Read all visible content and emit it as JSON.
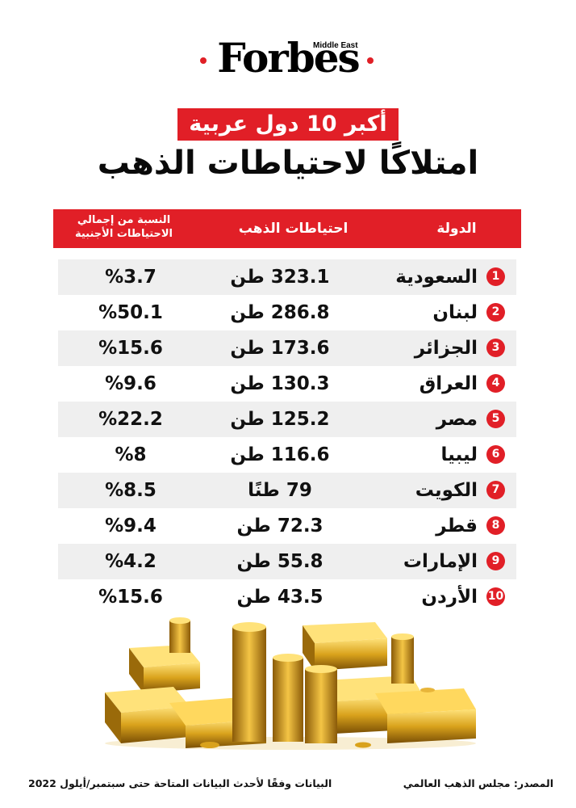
{
  "brand": {
    "name": "Forbes",
    "edition": "Middle East"
  },
  "title": {
    "line1": "أكبر 10 دول عربية",
    "line2": "امتلاكًا لاحتياطات الذهب"
  },
  "colors": {
    "accent": "#e11f27",
    "row_shade": "#efefef",
    "text": "#111111"
  },
  "chart_data": {
    "type": "table",
    "columns": {
      "country": "الدولة",
      "reserves": "احتياطات الذهب",
      "share_line1": "النسبة من إجمالي",
      "share_line2": "الاحتياطات الأجنبية"
    },
    "rows": [
      {
        "rank": "1",
        "country": "السعودية",
        "reserves": "323.1 طن",
        "share": "%3.7",
        "shaded": true
      },
      {
        "rank": "2",
        "country": "لبنان",
        "reserves": "286.8 طن",
        "share": "%50.1",
        "shaded": false
      },
      {
        "rank": "3",
        "country": "الجزائر",
        "reserves": "173.6 طن",
        "share": "%15.6",
        "shaded": true
      },
      {
        "rank": "4",
        "country": "العراق",
        "reserves": "130.3 طن",
        "share": "%9.6",
        "shaded": false
      },
      {
        "rank": "5",
        "country": "مصر",
        "reserves": "125.2 طن",
        "share": "%22.2",
        "shaded": true
      },
      {
        "rank": "6",
        "country": "ليبيا",
        "reserves": "116.6 طن",
        "share": "%8",
        "shaded": false
      },
      {
        "rank": "7",
        "country": "الكويت",
        "reserves": "79 طنًا",
        "share": "%8.5",
        "shaded": true
      },
      {
        "rank": "8",
        "country": "قطر",
        "reserves": "72.3 طن",
        "share": "%9.4",
        "shaded": false
      },
      {
        "rank": "9",
        "country": "الإمارات",
        "reserves": "55.8 طن",
        "share": "%4.2",
        "shaded": true
      },
      {
        "rank": "10",
        "country": "الأردن",
        "reserves": "43.5 طن",
        "share": "%15.6",
        "shaded": false
      }
    ]
  },
  "footer": {
    "source": "المصدر: مجلس الذهب العالمي",
    "note": "البيانات وفقًا لأحدث البيانات المتاحة حتى سبتمبر/أيلول 2022"
  }
}
